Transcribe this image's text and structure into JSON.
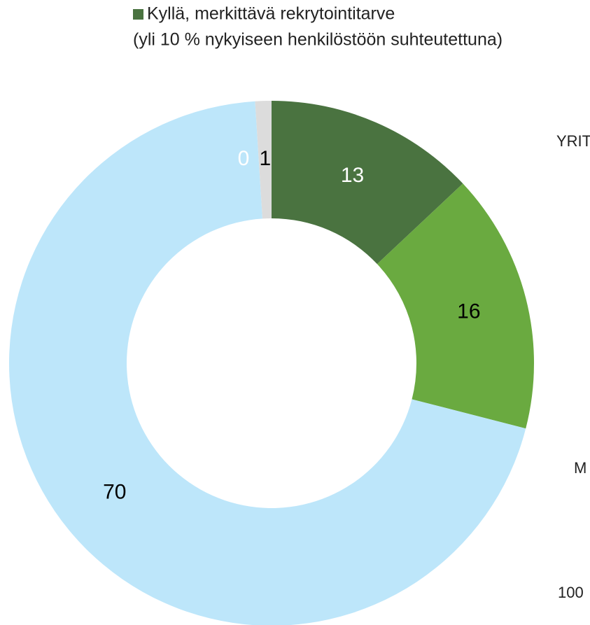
{
  "chart_data": {
    "type": "pie",
    "legend": [
      "Kyllä, merkittävä rekrytointitarve",
      "(yli 10 % nykyiseen henkilöstöön suhteutettuna)"
    ],
    "categories": [
      "Kyllä, merkittävä rekrytointitarve",
      null,
      null,
      null,
      null
    ],
    "values": [
      13,
      16,
      70,
      1,
      0
    ],
    "colors": [
      "#4a7340",
      "#6aaa40",
      "#bde6fa",
      "#dcdcdc",
      "#a9a9a9"
    ],
    "label_colors": [
      "#ffffff",
      "#000000",
      "#000000",
      "#000000",
      "#ffffff"
    ],
    "donut": true,
    "annotations": [
      "YRIT",
      "M",
      "100"
    ]
  }
}
